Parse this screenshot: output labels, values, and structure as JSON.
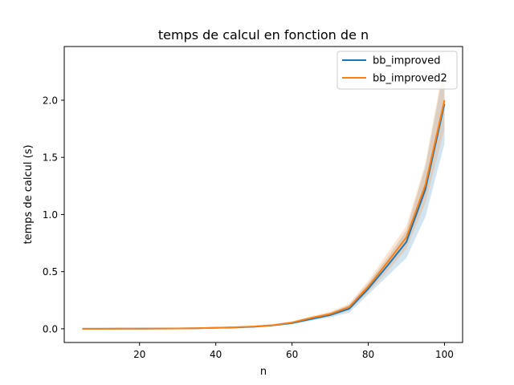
{
  "chart_data": {
    "type": "line",
    "title": "temps de calcul en fonction de n",
    "xlabel": "n",
    "ylabel": "temps de calcul (s)",
    "xlim": [
      0.25,
      104.75
    ],
    "ylim": [
      -0.12,
      2.47
    ],
    "xticks": [
      20,
      40,
      60,
      80,
      100
    ],
    "yticks": [
      0.0,
      0.5,
      1.0,
      1.5,
      2.0
    ],
    "xtick_labels": [
      "20",
      "40",
      "60",
      "80",
      "100"
    ],
    "ytick_labels": [
      "0.0",
      "0.5",
      "1.0",
      "1.5",
      "2.0"
    ],
    "grid": false,
    "legend_position": "top-right",
    "x": [
      5,
      10,
      15,
      20,
      25,
      30,
      35,
      40,
      45,
      50,
      55,
      60,
      65,
      70,
      75,
      80,
      85,
      90,
      95,
      100
    ],
    "series": [
      {
        "name": "bb_improved",
        "color": "#1f77b4",
        "values": [
          0.0,
          0.0,
          0.001,
          0.001,
          0.002,
          0.003,
          0.005,
          0.008,
          0.012,
          0.018,
          0.03,
          0.05,
          0.085,
          0.12,
          0.175,
          0.35,
          0.55,
          0.76,
          1.22,
          1.97
        ],
        "lower": [
          0.0,
          0.0,
          0.0,
          0.0,
          0.001,
          0.002,
          0.003,
          0.005,
          0.009,
          0.014,
          0.024,
          0.04,
          0.07,
          0.1,
          0.14,
          0.3,
          0.46,
          0.62,
          0.98,
          1.62
        ],
        "upper": [
          0.001,
          0.001,
          0.002,
          0.002,
          0.003,
          0.004,
          0.007,
          0.011,
          0.016,
          0.023,
          0.036,
          0.06,
          0.1,
          0.14,
          0.21,
          0.4,
          0.62,
          0.86,
          1.42,
          2.3
        ]
      },
      {
        "name": "bb_improved2",
        "color": "#ff7f0e",
        "values": [
          0.0,
          0.0,
          0.001,
          0.001,
          0.002,
          0.003,
          0.005,
          0.009,
          0.013,
          0.02,
          0.032,
          0.055,
          0.095,
          0.13,
          0.19,
          0.37,
          0.58,
          0.8,
          1.26,
          2.0
        ],
        "lower": [
          0.0,
          0.0,
          0.0,
          0.0,
          0.001,
          0.002,
          0.003,
          0.006,
          0.009,
          0.015,
          0.025,
          0.045,
          0.08,
          0.11,
          0.16,
          0.32,
          0.5,
          0.7,
          1.1,
          1.75
        ],
        "upper": [
          0.001,
          0.001,
          0.002,
          0.002,
          0.003,
          0.004,
          0.007,
          0.012,
          0.017,
          0.025,
          0.039,
          0.065,
          0.11,
          0.15,
          0.22,
          0.42,
          0.66,
          0.9,
          1.45,
          2.35
        ]
      }
    ]
  }
}
